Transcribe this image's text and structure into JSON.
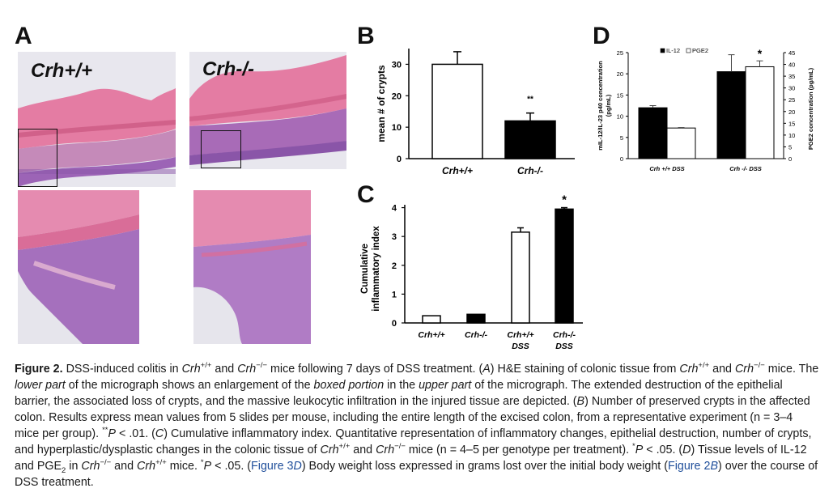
{
  "panels": {
    "A": {
      "letter": "A",
      "label_left": "Crh+/+",
      "label_right": "Crh-/-"
    },
    "B": {
      "letter": "B"
    },
    "C": {
      "letter": "C"
    },
    "D": {
      "letter": "D"
    }
  },
  "chart_data": [
    {
      "panel": "B",
      "type": "bar",
      "ylabel": "mean # of crypts",
      "categories": [
        "Crh+/+",
        "Crh-/-"
      ],
      "values": [
        30,
        12
      ],
      "errors": [
        4,
        2.5
      ],
      "fills": [
        "#ffffff",
        "#000000"
      ],
      "ylim": [
        0,
        35
      ],
      "yticks": [
        0,
        10,
        20,
        30
      ],
      "annotations": [
        {
          "category": "Crh-/-",
          "text": "**"
        }
      ]
    },
    {
      "panel": "C",
      "type": "bar",
      "ylabel_lines": [
        "Cumulative",
        "inflammatory index"
      ],
      "categories": [
        [
          "Crh+/+"
        ],
        [
          "Crh-/-"
        ],
        [
          "Crh+/+",
          "DSS"
        ],
        [
          "Crh-/-",
          "DSS"
        ]
      ],
      "values": [
        0.25,
        0.3,
        3.15,
        3.95
      ],
      "errors": [
        0,
        0,
        0.15,
        0.05
      ],
      "fills": [
        "#ffffff",
        "#000000",
        "#ffffff",
        "#000000"
      ],
      "ylim": [
        0,
        4.1
      ],
      "yticks": [
        0,
        1,
        2,
        3,
        4
      ],
      "annotations": [
        {
          "category": "Crh-/- DSS",
          "text": "*"
        }
      ]
    },
    {
      "panel": "D",
      "type": "bar",
      "ylabel_left_lines": [
        "mIL-12/IL-23 p40 concentration",
        "(pg/mL)"
      ],
      "ylabel_right": "PGE2 concentration (pg/mL)",
      "legend": [
        "IL-12",
        "PGE2"
      ],
      "legend_position": "top-left",
      "categories": [
        "Crh +/+ DSS",
        "Crh -/- DSS"
      ],
      "series": [
        {
          "name": "IL-12",
          "axis": "left",
          "fill": "#000000",
          "values": [
            12,
            20.5
          ],
          "errors": [
            0.5,
            4
          ]
        },
        {
          "name": "PGE2",
          "axis": "right",
          "fill": "#ffffff",
          "values": [
            13,
            39
          ],
          "errors": [
            0.2,
            2.5
          ]
        }
      ],
      "ylim_left": [
        0,
        25
      ],
      "yticks_left": [
        0,
        5,
        10,
        15,
        20,
        25
      ],
      "ylim_right": [
        0,
        45
      ],
      "yticks_right": [
        0,
        5,
        10,
        15,
        20,
        25,
        30,
        35,
        40,
        45
      ],
      "annotations": [
        {
          "category": "Crh -/- DSS",
          "text": "*"
        }
      ]
    }
  ],
  "caption": {
    "figure_label": "Figure 2.",
    "segments": [
      {
        "t": " DSS-induced colitis in "
      },
      {
        "t": "Crh",
        "i": true
      },
      {
        "t": "+/+",
        "sup": true
      },
      {
        "t": " and "
      },
      {
        "t": "Crh",
        "i": true
      },
      {
        "t": "−/−",
        "sup": true
      },
      {
        "t": " mice following 7 days of DSS treatment. ("
      },
      {
        "t": "A",
        "i": true
      },
      {
        "t": ") H&E staining of colonic tissue from "
      },
      {
        "t": "Crh",
        "i": true
      },
      {
        "t": "+/+",
        "sup": true
      },
      {
        "t": " and "
      },
      {
        "t": "Crh",
        "i": true
      },
      {
        "t": "−/−",
        "sup": true
      },
      {
        "t": " mice. The "
      },
      {
        "t": "lower part",
        "i": true
      },
      {
        "t": " of the micrograph shows an enlargement of the "
      },
      {
        "t": "boxed portion",
        "i": true
      },
      {
        "t": " in the "
      },
      {
        "t": "upper part",
        "i": true
      },
      {
        "t": " of the micrograph. The extended destruction of the epithelial barrier, the associated loss of crypts, and the massive leukocytic infiltration in the injured tissue are depicted. ("
      },
      {
        "t": "B",
        "i": true
      },
      {
        "t": ") Number of preserved crypts in the affected colon. Results express mean values from 5 slides per mouse, including the entire length of the excised colon, from a representative experiment (n = 3–4 mice per group). "
      },
      {
        "t": "**",
        "sup": true
      },
      {
        "t": "P",
        "i": true
      },
      {
        "t": " < .01. ("
      },
      {
        "t": "C",
        "i": true
      },
      {
        "t": ") Cumulative inflammatory index. Quantitative representation of inflammatory changes, epithelial destruction, number of crypts, and hyperplastic/dysplastic changes in the colonic tissue of "
      },
      {
        "t": "Crh",
        "i": true
      },
      {
        "t": "+/+",
        "sup": true
      },
      {
        "t": " and "
      },
      {
        "t": "Crh",
        "i": true
      },
      {
        "t": "−/−",
        "sup": true
      },
      {
        "t": " mice (n = 4–5 per genotype per treatment). "
      },
      {
        "t": "*",
        "sup": true
      },
      {
        "t": "P",
        "i": true
      },
      {
        "t": " < .05. ("
      },
      {
        "t": "D",
        "i": true
      },
      {
        "t": ") Tissue levels of IL-12 and PGE"
      },
      {
        "t": "2",
        "sub": true
      },
      {
        "t": " in "
      },
      {
        "t": "Crh",
        "i": true
      },
      {
        "t": "−/−",
        "sup": true
      },
      {
        "t": " and "
      },
      {
        "t": "Crh",
        "i": true
      },
      {
        "t": "+/+",
        "sup": true
      },
      {
        "t": " mice. "
      },
      {
        "t": "*",
        "sup": true
      },
      {
        "t": "P",
        "i": true
      },
      {
        "t": " < .05. ("
      },
      {
        "t": "Figure 3",
        "link": true
      },
      {
        "t": "D",
        "link": true,
        "i": true
      },
      {
        "t": ") Body weight loss expressed in grams lost over the initial body weight ("
      },
      {
        "t": "Figure 2",
        "link": true
      },
      {
        "t": "B",
        "link": true,
        "i": true
      },
      {
        "t": ") over the course of DSS treatment."
      }
    ]
  },
  "colors": {
    "he_pink": "#e47ca3",
    "he_purple": "#9c64b6",
    "background_gray": "#e9e9ee"
  }
}
